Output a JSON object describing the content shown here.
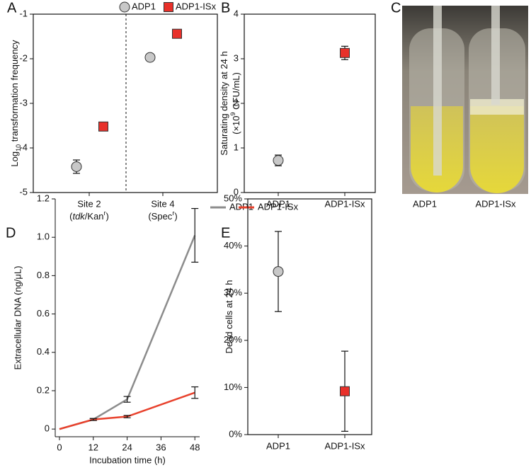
{
  "chart_data": [
    {
      "panel": "A",
      "type": "scatter",
      "y_label": [
        {
          "text": "Log"
        },
        {
          "text": "10",
          "style": "sub"
        },
        {
          "text": " transformation frequency"
        }
      ],
      "categories": [
        "Site 2",
        "Site 4"
      ],
      "category_notes": [
        [
          {
            "text": "("
          },
          {
            "text": "tdk",
            "style": "italic"
          },
          {
            "text": "/Kan"
          },
          {
            "text": "r",
            "style": "sup"
          },
          {
            "text": ")"
          }
        ],
        [
          {
            "text": "(Spec"
          },
          {
            "text": "r",
            "style": "sup"
          },
          {
            "text": ")"
          }
        ]
      ],
      "series": [
        {
          "name": "ADP1",
          "color": "#c8c8c8",
          "marker": "circle",
          "values": [
            -4.42,
            -1.97
          ],
          "errors": [
            0.15,
            null
          ]
        },
        {
          "name": "ADP1-ISx",
          "color": "#e8302a",
          "marker": "square",
          "values": [
            -3.52,
            -1.44
          ],
          "errors": [
            null,
            null
          ]
        }
      ],
      "ylim": [
        -5,
        -1
      ],
      "yticks": [
        -5,
        -4,
        -3,
        -2,
        -1
      ],
      "divider": true
    },
    {
      "panel": "B",
      "type": "scatter",
      "y_label": [
        [
          {
            "text": "Saturating density at 24 h"
          }
        ],
        [
          {
            "text": "(×10"
          },
          {
            "text": "9",
            "style": "sup"
          },
          {
            "text": " CFU/mL)"
          }
        ]
      ],
      "categories": [
        "ADP1",
        "ADP1-ISx"
      ],
      "values": [
        0.72,
        3.13
      ],
      "errors": [
        0.12,
        0.15
      ],
      "colors": [
        "#c8c8c8",
        "#e8302a"
      ],
      "markers": [
        "circle",
        "square"
      ],
      "ylim": [
        0,
        4
      ],
      "yticks": [
        0,
        1,
        2,
        3,
        4
      ]
    },
    {
      "panel": "C",
      "type": "image",
      "labels": [
        "ADP1",
        "ADP1-ISx"
      ]
    },
    {
      "panel": "D",
      "type": "line",
      "y_label": "Extracellular DNA (ng/μL)",
      "x_label": "Incubation time (h)",
      "x": [
        0,
        12,
        24,
        48
      ],
      "series": [
        {
          "name": "ADP1",
          "color": "#8c8c8c",
          "values": [
            0,
            0.05,
            0.155,
            1.01
          ],
          "errors": [
            null,
            0.005,
            0.015,
            0.14
          ]
        },
        {
          "name": "ADP1-ISx",
          "color": "#e8412c",
          "values": [
            0,
            0.05,
            0.065,
            0.19
          ],
          "errors": [
            null,
            0.005,
            0.006,
            0.03
          ]
        }
      ],
      "xlim": [
        -1.5,
        49.7
      ],
      "xticks": [
        0,
        12,
        24,
        36,
        48
      ],
      "ylim": [
        -0.04,
        1.2
      ],
      "yticks": [
        0,
        0.2,
        0.4,
        0.6,
        0.8,
        {
          "value": 1,
          "label": "1.0"
        },
        1.2
      ]
    },
    {
      "panel": "E",
      "type": "scatter",
      "y_label": [
        [
          {
            "text": "Dead cells at 24 h"
          }
        ]
      ],
      "categories": [
        "ADP1",
        "ADP1-ISx"
      ],
      "values": [
        34.6,
        9.2
      ],
      "errors": [
        8.5,
        8.5
      ],
      "colors": [
        "#c8c8c8",
        "#e8302a"
      ],
      "markers": [
        "circle",
        "square"
      ],
      "ylim": [
        0,
        50
      ],
      "yticks": [
        {
          "value": 0,
          "label": "0%"
        },
        {
          "value": 10,
          "label": "10%"
        },
        {
          "value": 20,
          "label": "20%"
        },
        {
          "value": 30,
          "label": "30%"
        },
        {
          "value": 40,
          "label": "40%"
        },
        {
          "value": 50,
          "label": "50%"
        }
      ]
    }
  ]
}
